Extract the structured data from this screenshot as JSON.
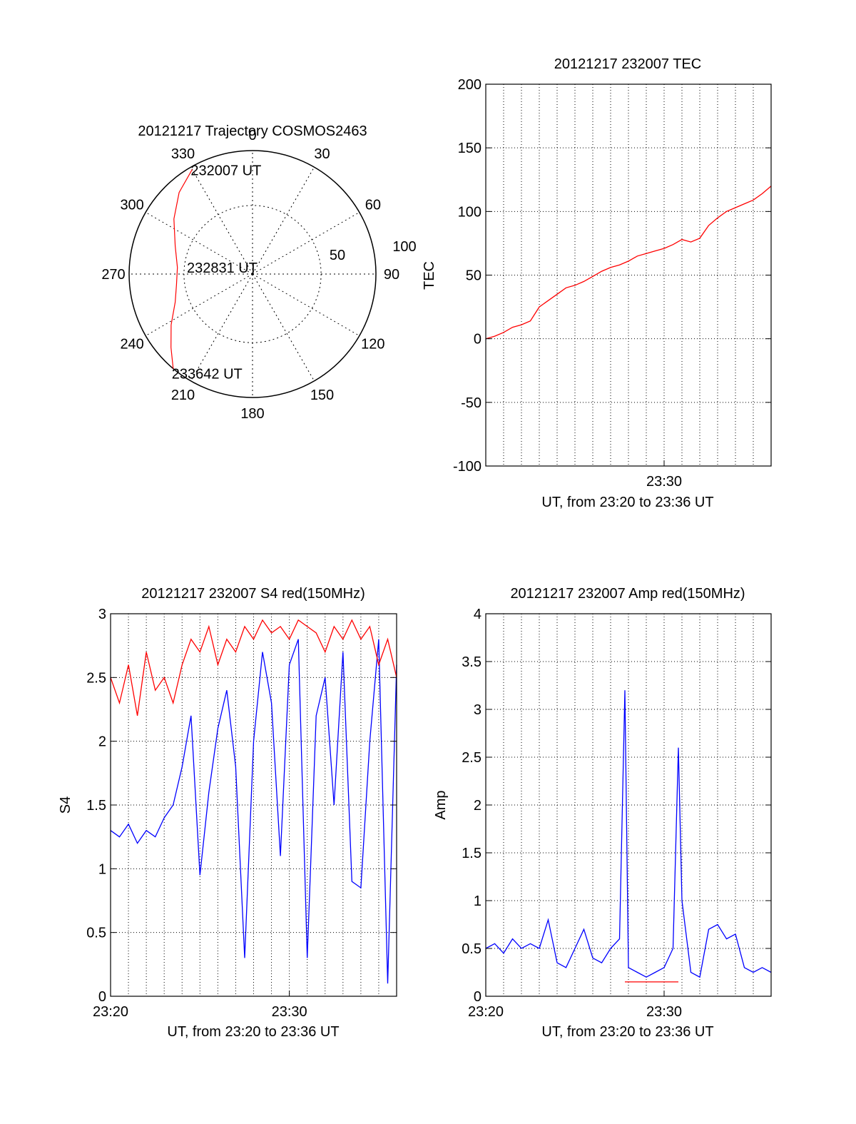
{
  "chart_data": [
    {
      "type": "polar",
      "title": "20121217 Trajectory COSMOS2463",
      "angle_labels": [
        "0",
        "30",
        "60",
        "90",
        "120",
        "150",
        "180",
        "210",
        "240",
        "270",
        "300",
        "330"
      ],
      "radial_labels": [
        "50",
        "100"
      ],
      "start_label": "232007 UT",
      "mid_label": "232831 UT",
      "end_label": "233642 UT",
      "trajectory": [
        {
          "az": 330,
          "zen": 88
        },
        {
          "az": 318,
          "zen": 80
        },
        {
          "az": 305,
          "zen": 70
        },
        {
          "az": 290,
          "zen": 60
        },
        {
          "az": 275,
          "zen": 55
        },
        {
          "az": 262,
          "zen": 56
        },
        {
          "az": 250,
          "zen": 60
        },
        {
          "az": 238,
          "zen": 70
        },
        {
          "az": 228,
          "zen": 80
        },
        {
          "az": 220,
          "zen": 90
        }
      ],
      "line_color": "#ff0000",
      "grid": true
    },
    {
      "type": "line",
      "title": "20121217 232007 TEC",
      "xlabel": "UT, from 23:20 to 23:36 UT",
      "ylabel": "TEC",
      "xlim": [
        0,
        16
      ],
      "ylim": [
        -100,
        200
      ],
      "yticks": [
        "200",
        "150",
        "100",
        "50",
        "0",
        "-50",
        "-100"
      ],
      "xticks": [
        {
          "pos": 10,
          "label": "23:30"
        }
      ],
      "grid": true,
      "series": [
        {
          "color": "#ff0000",
          "x": [
            0,
            0.5,
            1,
            1.5,
            2,
            2.5,
            3,
            3.5,
            4,
            4.5,
            5,
            5.5,
            6,
            6.5,
            7,
            7.5,
            8,
            8.5,
            9,
            9.5,
            10,
            10.5,
            11,
            11.5,
            12,
            12.5,
            13,
            13.5,
            14,
            14.5,
            15,
            15.5,
            16
          ],
          "y": [
            0,
            2,
            5,
            9,
            11,
            14,
            25,
            30,
            35,
            40,
            42,
            45,
            49,
            53,
            56,
            58,
            61,
            65,
            67,
            69,
            71,
            74,
            78,
            76,
            79,
            89,
            95,
            100,
            103,
            106,
            109,
            114,
            120
          ]
        }
      ]
    },
    {
      "type": "line",
      "title": "20121217 232007 S4 red(150MHz)",
      "xlabel": "UT, from 23:20 to 23:36 UT",
      "ylabel": "S4",
      "xlim": [
        0,
        16
      ],
      "ylim": [
        0,
        3
      ],
      "yticks": [
        "3",
        "2.5",
        "2",
        "1.5",
        "1",
        "0.5",
        "0"
      ],
      "xticks": [
        {
          "pos": 0,
          "label": "23:20"
        },
        {
          "pos": 10,
          "label": "23:30"
        }
      ],
      "grid": true,
      "series": [
        {
          "color": "#0000ff",
          "x": [
            0,
            0.5,
            1,
            1.5,
            2,
            2.5,
            3,
            3.5,
            4,
            4.5,
            5,
            5.5,
            6,
            6.5,
            7,
            7.5,
            8,
            8.5,
            9,
            9.5,
            10,
            10.5,
            11,
            11.5,
            12,
            12.5,
            13,
            13.5,
            14,
            14.5,
            15,
            15.5,
            16
          ],
          "y": [
            1.3,
            1.25,
            1.35,
            1.2,
            1.3,
            1.25,
            1.4,
            1.5,
            1.8,
            2.2,
            0.95,
            1.6,
            2.1,
            2.4,
            1.8,
            0.3,
            2.0,
            2.7,
            2.3,
            1.1,
            2.6,
            2.8,
            0.3,
            2.2,
            2.5,
            1.5,
            2.7,
            0.9,
            0.85,
            2.0,
            2.8,
            0.1,
            2.6
          ]
        },
        {
          "color": "#ff0000",
          "x": [
            0,
            0.5,
            1,
            1.5,
            2,
            2.5,
            3,
            3.5,
            4,
            4.5,
            5,
            5.5,
            6,
            6.5,
            7,
            7.5,
            8,
            8.5,
            9,
            9.5,
            10,
            10.5,
            11,
            11.5,
            12,
            12.5,
            13,
            13.5,
            14,
            14.5,
            15,
            15.5,
            16
          ],
          "y": [
            2.5,
            2.3,
            2.6,
            2.2,
            2.7,
            2.4,
            2.5,
            2.3,
            2.6,
            2.8,
            2.7,
            2.9,
            2.6,
            2.8,
            2.7,
            2.9,
            2.8,
            2.95,
            2.85,
            2.9,
            2.8,
            2.95,
            2.9,
            2.85,
            2.7,
            2.9,
            2.8,
            2.95,
            2.8,
            2.9,
            2.6,
            2.8,
            2.5
          ]
        }
      ]
    },
    {
      "type": "line",
      "title": "20121217 232007 Amp red(150MHz)",
      "xlabel": "UT, from 23:20 to 23:36 UT",
      "ylabel": "Amp",
      "xlim": [
        0,
        16
      ],
      "ylim": [
        0,
        4
      ],
      "yticks": [
        "4",
        "3.5",
        "3",
        "2.5",
        "2",
        "1.5",
        "1",
        "0.5",
        "0"
      ],
      "xticks": [
        {
          "pos": 0,
          "label": "23:20"
        },
        {
          "pos": 10,
          "label": "23:30"
        }
      ],
      "grid": true,
      "series": [
        {
          "color": "#0000ff",
          "x": [
            0,
            0.5,
            1,
            1.5,
            2,
            2.5,
            3,
            3.5,
            4,
            4.5,
            5,
            5.5,
            6,
            6.5,
            7,
            7.5,
            7.8,
            8,
            8.5,
            9,
            9.5,
            10,
            10.5,
            10.8,
            11,
            11.5,
            12,
            12.5,
            13,
            13.5,
            14,
            14.5,
            15,
            15.5,
            16
          ],
          "y": [
            0.5,
            0.55,
            0.45,
            0.6,
            0.5,
            0.55,
            0.5,
            0.8,
            0.35,
            0.3,
            0.5,
            0.7,
            0.4,
            0.35,
            0.5,
            0.6,
            3.2,
            0.3,
            0.25,
            0.2,
            0.25,
            0.3,
            0.5,
            2.6,
            1.0,
            0.25,
            0.2,
            0.7,
            0.75,
            0.6,
            0.65,
            0.3,
            0.25,
            0.3,
            0.25
          ]
        },
        {
          "color": "#ff0000",
          "x": [
            7.8,
            10.8
          ],
          "y": [
            0.15,
            0.15
          ]
        }
      ]
    }
  ]
}
